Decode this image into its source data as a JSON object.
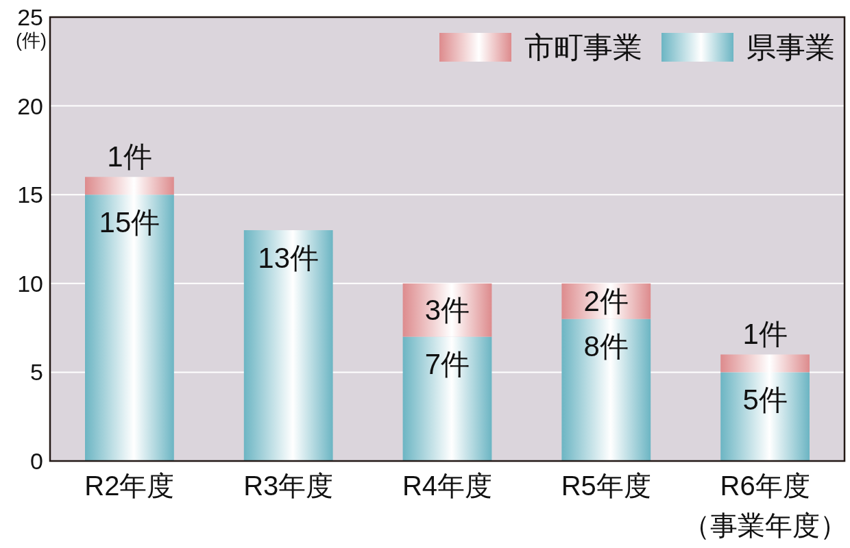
{
  "chart_data": {
    "type": "bar",
    "stacked": true,
    "categories": [
      "R2年度",
      "R3年度",
      "R4年度",
      "R5年度",
      "R6年度（事業年度）"
    ],
    "series": [
      {
        "name": "県事業",
        "color": "#6cb5c3",
        "values": [
          15,
          13,
          7,
          8,
          5
        ],
        "value_labels": [
          "15件",
          "13件",
          "7件",
          "8件",
          "5件"
        ]
      },
      {
        "name": "市町事業",
        "color": "#dd8b8d",
        "values": [
          1,
          null,
          3,
          2,
          1
        ],
        "value_labels": [
          "1件",
          null,
          "3件",
          "2件",
          "1件"
        ]
      }
    ],
    "ylabel": "(件)",
    "ylim": [
      0,
      25
    ],
    "yticks": [
      0,
      5,
      10,
      15,
      20,
      25
    ],
    "grid": "y",
    "legend": "top right"
  }
}
